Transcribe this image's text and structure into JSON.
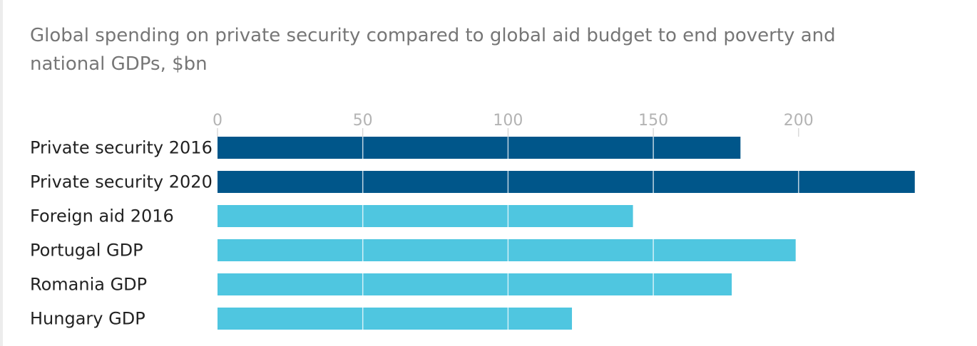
{
  "chart_data": {
    "type": "bar",
    "orientation": "horizontal",
    "title": "Global spending on private security compared to global aid budget to end poverty and national GDPs, $bn",
    "xlabel": "",
    "ylabel": "",
    "xlim": [
      0,
      240
    ],
    "ticks": [
      0,
      50,
      100,
      150,
      200
    ],
    "grid": true,
    "categories": [
      "Private security 2016",
      "Private security 2020",
      "Foreign aid 2016",
      "Portugal GDP",
      "Romania GDP",
      "Hungary GDP"
    ],
    "values": [
      180,
      240,
      143,
      199,
      177,
      122
    ],
    "bar_colors": [
      "#00568a",
      "#00568a",
      "#4fc6e0",
      "#4fc6e0",
      "#4fc6e0",
      "#4fc6e0"
    ]
  }
}
